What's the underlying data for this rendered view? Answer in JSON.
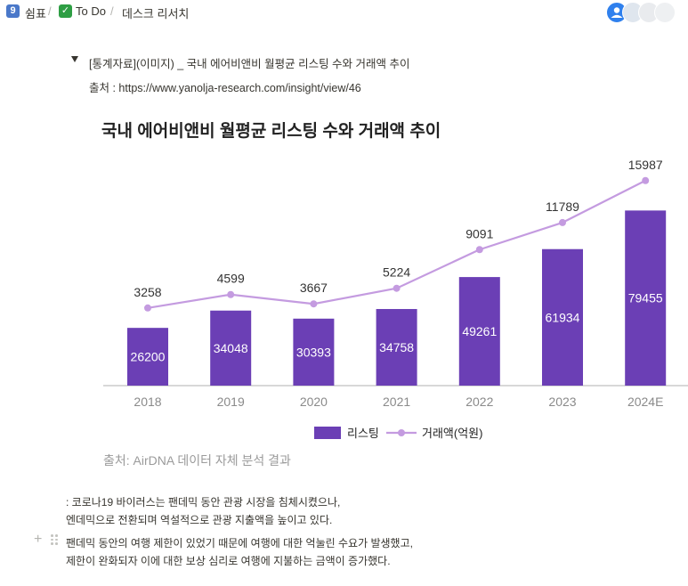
{
  "breadcrumb": {
    "items": [
      {
        "icon": "9",
        "label": "쉼표"
      },
      {
        "icon": "✓",
        "label": "To Do"
      },
      {
        "label": "데스크 리서치"
      }
    ],
    "separator": "/"
  },
  "toggle": {
    "title": "[통계자료](이미지) _ 국내 에어비앤비 월평균 리스팅 수와 거래액 추이",
    "source_label": "출처 : ",
    "source_url": "https://www.yanolja-research.com/insight/view/46"
  },
  "colors": {
    "bar": "#6b3fb5",
    "line": "#c49be0",
    "axis": "#8a8a8a",
    "accent_avatar": "#2f80ed"
  },
  "chart_data": {
    "type": "bar+line",
    "title": "국내 에어비앤비 월평균 리스팅 수와 거래액 추이",
    "categories": [
      "2018",
      "2019",
      "2020",
      "2021",
      "2022",
      "2023",
      "2024E"
    ],
    "series": [
      {
        "name": "리스팅",
        "type": "bar",
        "values": [
          26200,
          34048,
          30393,
          34758,
          49261,
          61934,
          79455
        ]
      },
      {
        "name": "거래액(억원)",
        "type": "line",
        "values": [
          3258,
          4599,
          3667,
          5224,
          9091,
          11789,
          15987
        ]
      }
    ],
    "bar_ylim": [
      0,
      99000
    ],
    "line_ylim": [
      -4500,
      17300
    ],
    "legend": [
      "리스팅",
      "거래액(억원)"
    ],
    "legend_position": "bottom",
    "grid": false
  },
  "caption": "출처: AirDNA 데이터 자체 분석 결과",
  "paragraphs": [
    ": 코로나19 바이러스는 팬데믹 동안 관광 시장을 침체시켰으나,",
    "엔데믹으로 전환되며 역설적으로 관광 지출액을 높이고 있다.",
    "팬데믹 동안의 여행 제한이 있었기 때문에 여행에 대한 억눌린 수요가 발생했고,",
    "제한이 완화되자 이에 대한 보상 심리로 여행에 지불하는 금액이 증가했다."
  ]
}
